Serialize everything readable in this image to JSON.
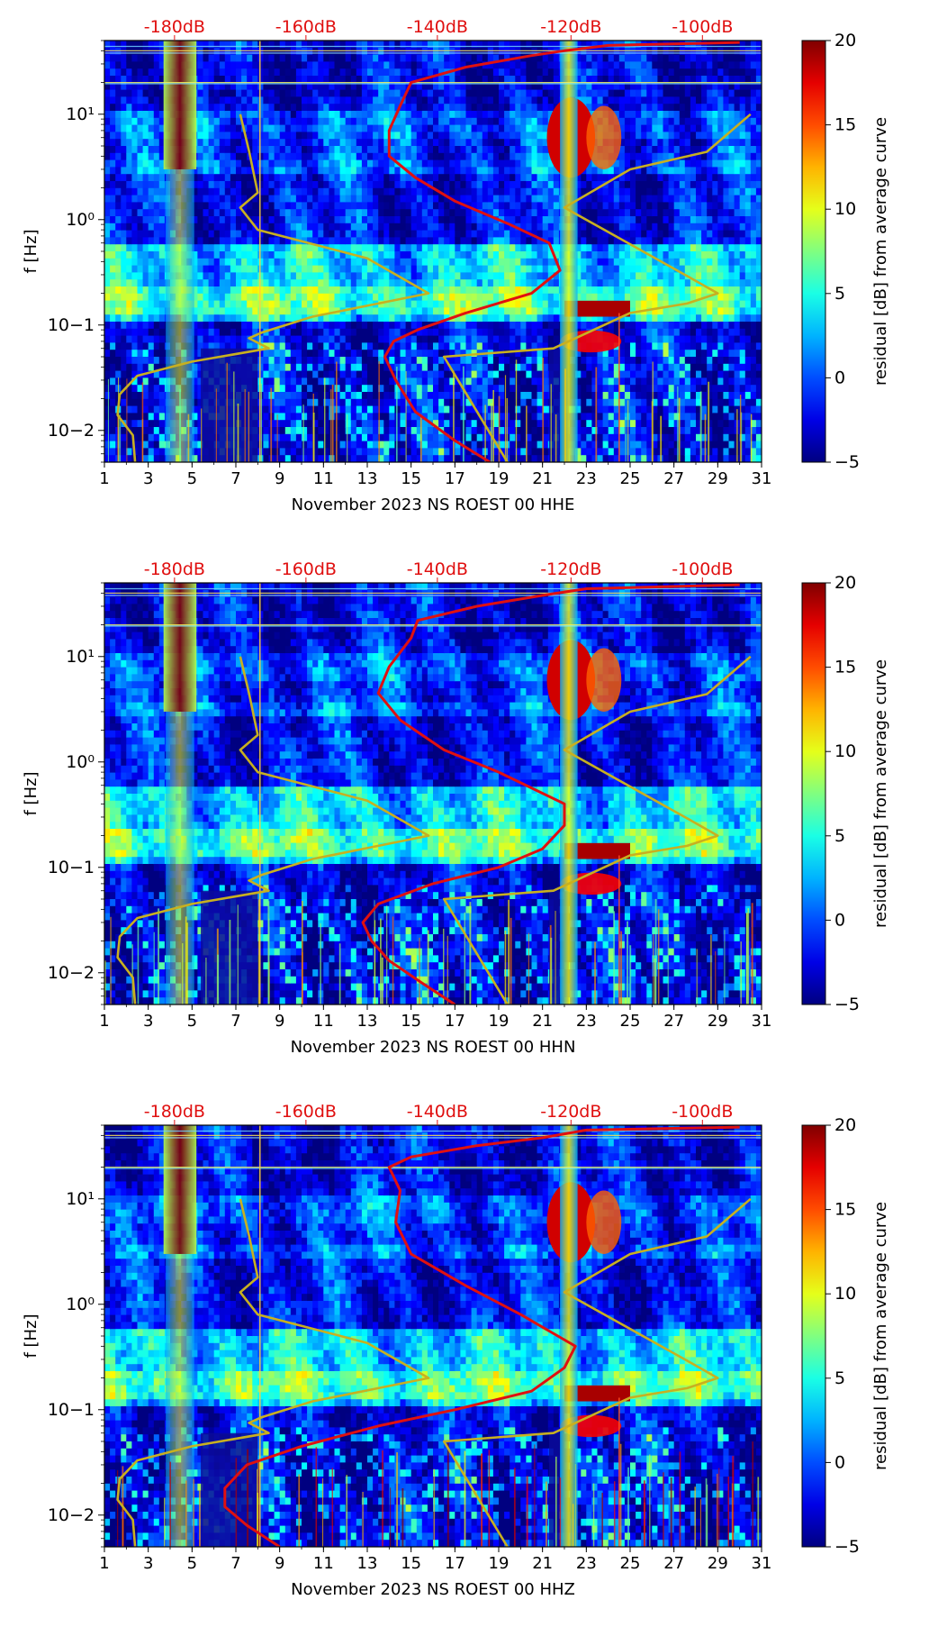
{
  "figure": {
    "panel_count": 3
  },
  "chart_data": [
    {
      "type": "heatmap",
      "xlabel": "November 2023 NS ROEST 00 HHE",
      "ylabel": "f [Hz]",
      "x_range": [
        1,
        31
      ],
      "x_ticks": [
        "1",
        "3",
        "5",
        "7",
        "9",
        "11",
        "13",
        "15",
        "17",
        "19",
        "21",
        "23",
        "25",
        "27",
        "29",
        "31"
      ],
      "y_scale": "log",
      "y_range": [
        0.005,
        50
      ],
      "y_ticks": [
        {
          "value": 0.01,
          "label": "10−2"
        },
        {
          "value": 0.1,
          "label": "10−1"
        },
        {
          "value": 1,
          "label": "10⁰"
        },
        {
          "value": 10,
          "label": "10¹"
        }
      ],
      "top_ticks": [
        {
          "day": 4.2,
          "label": "-180dB"
        },
        {
          "day": 10.2,
          "label": "-160dB"
        },
        {
          "day": 16.2,
          "label": "-140dB"
        },
        {
          "day": 22.3,
          "label": "-120dB"
        },
        {
          "day": 28.3,
          "label": "-100dB"
        }
      ],
      "colorbar": {
        "label": "residual [dB] from average curve",
        "range": [
          -5,
          20
        ],
        "ticks": [
          "−5",
          "0",
          "5",
          "10",
          "15",
          "20"
        ]
      },
      "noise_models": [
        {
          "name": "average PSD curve",
          "color": "#e01010",
          "points": [
            [
              18.6,
              0.005
            ],
            [
              17.0,
              0.008
            ],
            [
              15.2,
              0.015
            ],
            [
              14.3,
              0.03
            ],
            [
              13.8,
              0.05
            ],
            [
              14.2,
              0.07
            ],
            [
              15.3,
              0.09
            ],
            [
              17.5,
              0.13
            ],
            [
              20.5,
              0.2
            ],
            [
              21.8,
              0.33
            ],
            [
              21.3,
              0.6
            ],
            [
              19.5,
              0.9
            ],
            [
              17.0,
              1.5
            ],
            [
              15.2,
              2.5
            ],
            [
              14.0,
              4
            ],
            [
              14.0,
              7
            ],
            [
              14.5,
              12
            ],
            [
              15.0,
              20
            ],
            [
              17.5,
              28
            ],
            [
              20.5,
              36
            ],
            [
              22.0,
              40
            ],
            [
              24.0,
              45
            ],
            [
              30.0,
              48
            ]
          ]
        },
        {
          "name": "low noise model",
          "color": "#c8b020",
          "points": [
            [
              2.4,
              0.005
            ],
            [
              2.3,
              0.009
            ],
            [
              1.6,
              0.014
            ],
            [
              1.7,
              0.022
            ],
            [
              2.5,
              0.033
            ],
            [
              5.0,
              0.045
            ],
            [
              8.5,
              0.06
            ],
            [
              7.6,
              0.075
            ],
            [
              8.2,
              0.085
            ],
            [
              10.5,
              0.12
            ],
            [
              13.5,
              0.16
            ],
            [
              15.8,
              0.2
            ],
            [
              13.0,
              0.43
            ],
            [
              8.0,
              0.8
            ],
            [
              7.2,
              1.3
            ],
            [
              8.0,
              1.8
            ],
            [
              7.6,
              4.5
            ],
            [
              7.2,
              10
            ]
          ]
        },
        {
          "name": "high noise model",
          "color": "#c8b020",
          "points": [
            [
              19.4,
              0.005
            ],
            [
              16.5,
              0.05
            ],
            [
              21.5,
              0.06
            ],
            [
              25.0,
              0.13
            ],
            [
              27.6,
              0.16
            ],
            [
              29.0,
              0.2
            ],
            [
              27.5,
              0.3
            ],
            [
              22.0,
              1.3
            ],
            [
              25.0,
              3.0
            ],
            [
              28.5,
              4.4
            ],
            [
              30.5,
              10
            ]
          ]
        }
      ]
    },
    {
      "type": "heatmap",
      "xlabel": "November 2023 NS ROEST 00 HHN",
      "ylabel": "f [Hz]",
      "x_range": [
        1,
        31
      ],
      "x_ticks": [
        "1",
        "3",
        "5",
        "7",
        "9",
        "11",
        "13",
        "15",
        "17",
        "19",
        "21",
        "23",
        "25",
        "27",
        "29",
        "31"
      ],
      "y_scale": "log",
      "y_range": [
        0.005,
        50
      ],
      "y_ticks": [
        {
          "value": 0.01,
          "label": "10−2"
        },
        {
          "value": 0.1,
          "label": "10−1"
        },
        {
          "value": 1,
          "label": "10⁰"
        },
        {
          "value": 10,
          "label": "10¹"
        }
      ],
      "top_ticks": [
        {
          "day": 4.2,
          "label": "-180dB"
        },
        {
          "day": 10.2,
          "label": "-160dB"
        },
        {
          "day": 16.2,
          "label": "-140dB"
        },
        {
          "day": 22.3,
          "label": "-120dB"
        },
        {
          "day": 28.3,
          "label": "-100dB"
        }
      ],
      "colorbar": {
        "label": "residual [dB] from average curve",
        "range": [
          -5,
          20
        ],
        "ticks": [
          "−5",
          "0",
          "5",
          "10",
          "15",
          "20"
        ]
      },
      "noise_models": [
        {
          "name": "average PSD curve",
          "color": "#e01010",
          "points": [
            [
              17.0,
              0.005
            ],
            [
              15.5,
              0.008
            ],
            [
              14.0,
              0.013
            ],
            [
              13.2,
              0.02
            ],
            [
              12.8,
              0.03
            ],
            [
              13.5,
              0.045
            ],
            [
              16.0,
              0.07
            ],
            [
              19.0,
              0.1
            ],
            [
              21.0,
              0.15
            ],
            [
              22.0,
              0.25
            ],
            [
              22.0,
              0.4
            ],
            [
              19.0,
              0.8
            ],
            [
              16.5,
              1.3
            ],
            [
              14.5,
              2.5
            ],
            [
              13.5,
              4.5
            ],
            [
              14.0,
              8
            ],
            [
              15.0,
              15
            ],
            [
              15.3,
              22
            ],
            [
              18.0,
              30
            ],
            [
              21.0,
              38
            ],
            [
              23.0,
              44
            ],
            [
              30.0,
              48
            ]
          ]
        },
        {
          "name": "low noise model",
          "color": "#c8b020",
          "points": [
            [
              2.4,
              0.005
            ],
            [
              2.3,
              0.009
            ],
            [
              1.6,
              0.014
            ],
            [
              1.7,
              0.022
            ],
            [
              2.5,
              0.033
            ],
            [
              5.0,
              0.045
            ],
            [
              8.5,
              0.06
            ],
            [
              7.6,
              0.075
            ],
            [
              8.2,
              0.085
            ],
            [
              10.5,
              0.12
            ],
            [
              13.5,
              0.16
            ],
            [
              15.8,
              0.2
            ],
            [
              13.0,
              0.43
            ],
            [
              8.0,
              0.8
            ],
            [
              7.2,
              1.3
            ],
            [
              8.0,
              1.8
            ],
            [
              7.6,
              4.5
            ],
            [
              7.2,
              10
            ]
          ]
        },
        {
          "name": "high noise model",
          "color": "#c8b020",
          "points": [
            [
              19.4,
              0.005
            ],
            [
              16.5,
              0.05
            ],
            [
              21.5,
              0.06
            ],
            [
              25.0,
              0.13
            ],
            [
              27.6,
              0.16
            ],
            [
              29.0,
              0.2
            ],
            [
              27.5,
              0.3
            ],
            [
              22.0,
              1.3
            ],
            [
              25.0,
              3.0
            ],
            [
              28.5,
              4.4
            ],
            [
              30.5,
              10
            ]
          ]
        }
      ]
    },
    {
      "type": "heatmap",
      "xlabel": "November 2023 NS ROEST 00 HHZ",
      "ylabel": "f [Hz]",
      "x_range": [
        1,
        31
      ],
      "x_ticks": [
        "1",
        "3",
        "5",
        "7",
        "9",
        "11",
        "13",
        "15",
        "17",
        "19",
        "21",
        "23",
        "25",
        "27",
        "29",
        "31"
      ],
      "y_scale": "log",
      "y_range": [
        0.005,
        50
      ],
      "y_ticks": [
        {
          "value": 0.01,
          "label": "10−2"
        },
        {
          "value": 0.1,
          "label": "10−1"
        },
        {
          "value": 1,
          "label": "10⁰"
        },
        {
          "value": 10,
          "label": "10¹"
        }
      ],
      "top_ticks": [
        {
          "day": 4.2,
          "label": "-180dB"
        },
        {
          "day": 10.2,
          "label": "-160dB"
        },
        {
          "day": 16.2,
          "label": "-140dB"
        },
        {
          "day": 22.3,
          "label": "-120dB"
        },
        {
          "day": 28.3,
          "label": "-100dB"
        }
      ],
      "colorbar": {
        "label": "residual [dB] from average curve",
        "range": [
          -5,
          20
        ],
        "ticks": [
          "−5",
          "0",
          "5",
          "10",
          "15",
          "20"
        ]
      },
      "noise_models": [
        {
          "name": "average PSD curve",
          "color": "#e01010",
          "points": [
            [
              9.0,
              0.005
            ],
            [
              7.5,
              0.008
            ],
            [
              6.5,
              0.012
            ],
            [
              6.5,
              0.018
            ],
            [
              7.5,
              0.03
            ],
            [
              10.0,
              0.045
            ],
            [
              13.5,
              0.07
            ],
            [
              17.0,
              0.1
            ],
            [
              20.5,
              0.15
            ],
            [
              22.0,
              0.25
            ],
            [
              22.5,
              0.4
            ],
            [
              20.0,
              0.8
            ],
            [
              17.5,
              1.5
            ],
            [
              15.0,
              3
            ],
            [
              14.3,
              6
            ],
            [
              14.5,
              12
            ],
            [
              14.0,
              20
            ],
            [
              15.0,
              25
            ],
            [
              18.0,
              32
            ],
            [
              21.0,
              38
            ],
            [
              23.0,
              45
            ],
            [
              30.0,
              48
            ]
          ]
        },
        {
          "name": "low noise model",
          "color": "#c8b020",
          "points": [
            [
              2.4,
              0.005
            ],
            [
              2.3,
              0.009
            ],
            [
              1.6,
              0.014
            ],
            [
              1.7,
              0.022
            ],
            [
              2.5,
              0.033
            ],
            [
              5.0,
              0.045
            ],
            [
              8.5,
              0.06
            ],
            [
              7.6,
              0.075
            ],
            [
              8.2,
              0.085
            ],
            [
              10.5,
              0.12
            ],
            [
              13.5,
              0.16
            ],
            [
              15.8,
              0.2
            ],
            [
              13.0,
              0.43
            ],
            [
              8.0,
              0.8
            ],
            [
              7.2,
              1.3
            ],
            [
              8.0,
              1.8
            ],
            [
              7.6,
              4.5
            ],
            [
              7.2,
              10
            ]
          ]
        },
        {
          "name": "high noise model",
          "color": "#c8b020",
          "points": [
            [
              19.4,
              0.005
            ],
            [
              16.5,
              0.05
            ],
            [
              21.5,
              0.06
            ],
            [
              25.0,
              0.13
            ],
            [
              27.6,
              0.16
            ],
            [
              29.0,
              0.2
            ],
            [
              27.5,
              0.3
            ],
            [
              22.0,
              1.3
            ],
            [
              25.0,
              3.0
            ],
            [
              28.5,
              4.4
            ],
            [
              30.5,
              10
            ]
          ]
        }
      ]
    }
  ]
}
